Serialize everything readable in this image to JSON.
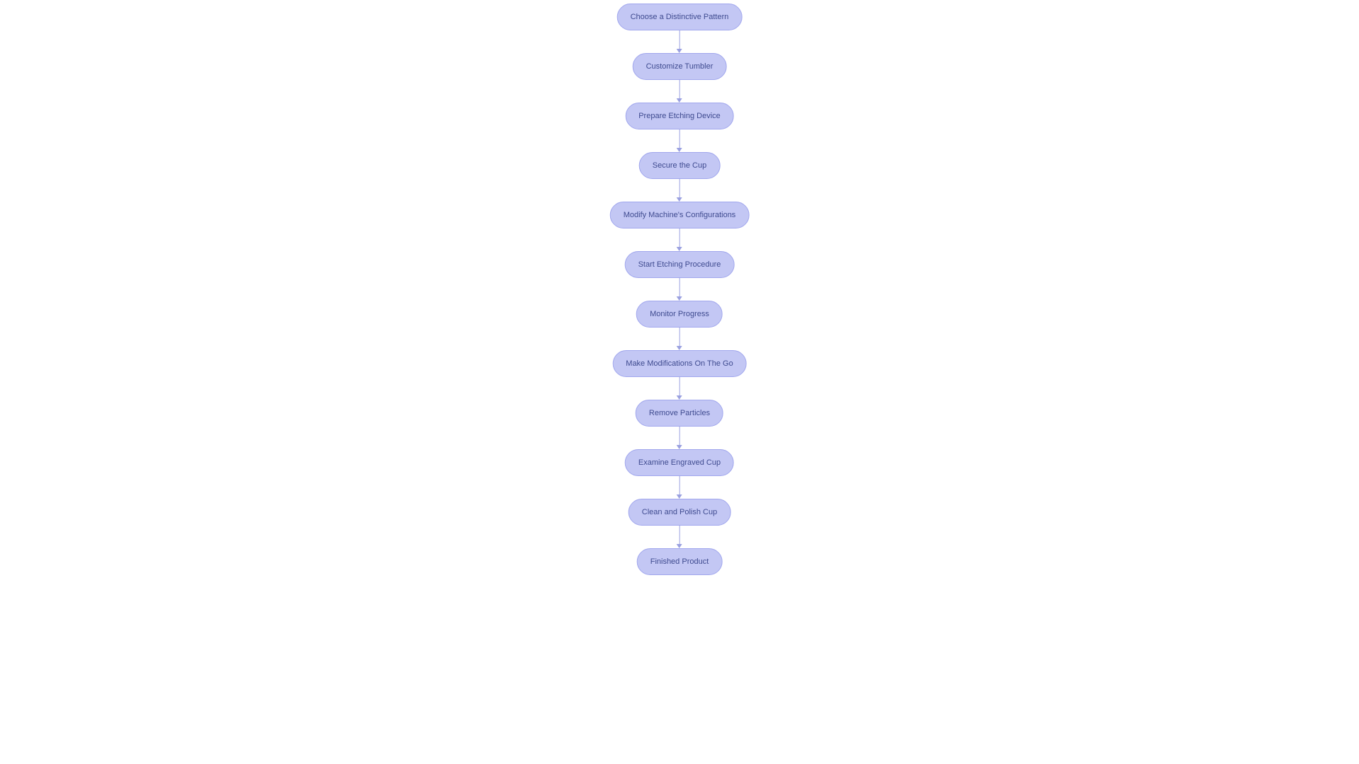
{
  "flowchart": {
    "type": "flowchart",
    "direction": "vertical",
    "background_color": "#ffffff",
    "node_style": {
      "fill": "#c3c7f4",
      "stroke": "#a0a6ed",
      "text_color": "#3e4a8f",
      "font_size": 11,
      "border_radius": 20,
      "height": 38,
      "padding_x": 18
    },
    "edge_style": {
      "color": "#9aa0e0",
      "arrow": "triangle",
      "arrow_size": 6,
      "line_width": 1,
      "gap": 32
    },
    "nodes": [
      {
        "id": "n1",
        "label": "Choose a Distinctive Pattern"
      },
      {
        "id": "n2",
        "label": "Customize Tumbler"
      },
      {
        "id": "n3",
        "label": "Prepare Etching Device"
      },
      {
        "id": "n4",
        "label": "Secure the Cup"
      },
      {
        "id": "n5",
        "label": "Modify Machine's Configurations"
      },
      {
        "id": "n6",
        "label": "Start Etching Procedure"
      },
      {
        "id": "n7",
        "label": "Monitor Progress"
      },
      {
        "id": "n8",
        "label": "Make Modifications On The Go"
      },
      {
        "id": "n9",
        "label": "Remove Particles"
      },
      {
        "id": "n10",
        "label": "Examine Engraved Cup"
      },
      {
        "id": "n11",
        "label": "Clean and Polish Cup"
      },
      {
        "id": "n12",
        "label": "Finished Product"
      }
    ],
    "edges": [
      {
        "from": "n1",
        "to": "n2"
      },
      {
        "from": "n2",
        "to": "n3"
      },
      {
        "from": "n3",
        "to": "n4"
      },
      {
        "from": "n4",
        "to": "n5"
      },
      {
        "from": "n5",
        "to": "n6"
      },
      {
        "from": "n6",
        "to": "n7"
      },
      {
        "from": "n7",
        "to": "n8"
      },
      {
        "from": "n8",
        "to": "n9"
      },
      {
        "from": "n9",
        "to": "n10"
      },
      {
        "from": "n10",
        "to": "n11"
      },
      {
        "from": "n11",
        "to": "n12"
      }
    ]
  }
}
